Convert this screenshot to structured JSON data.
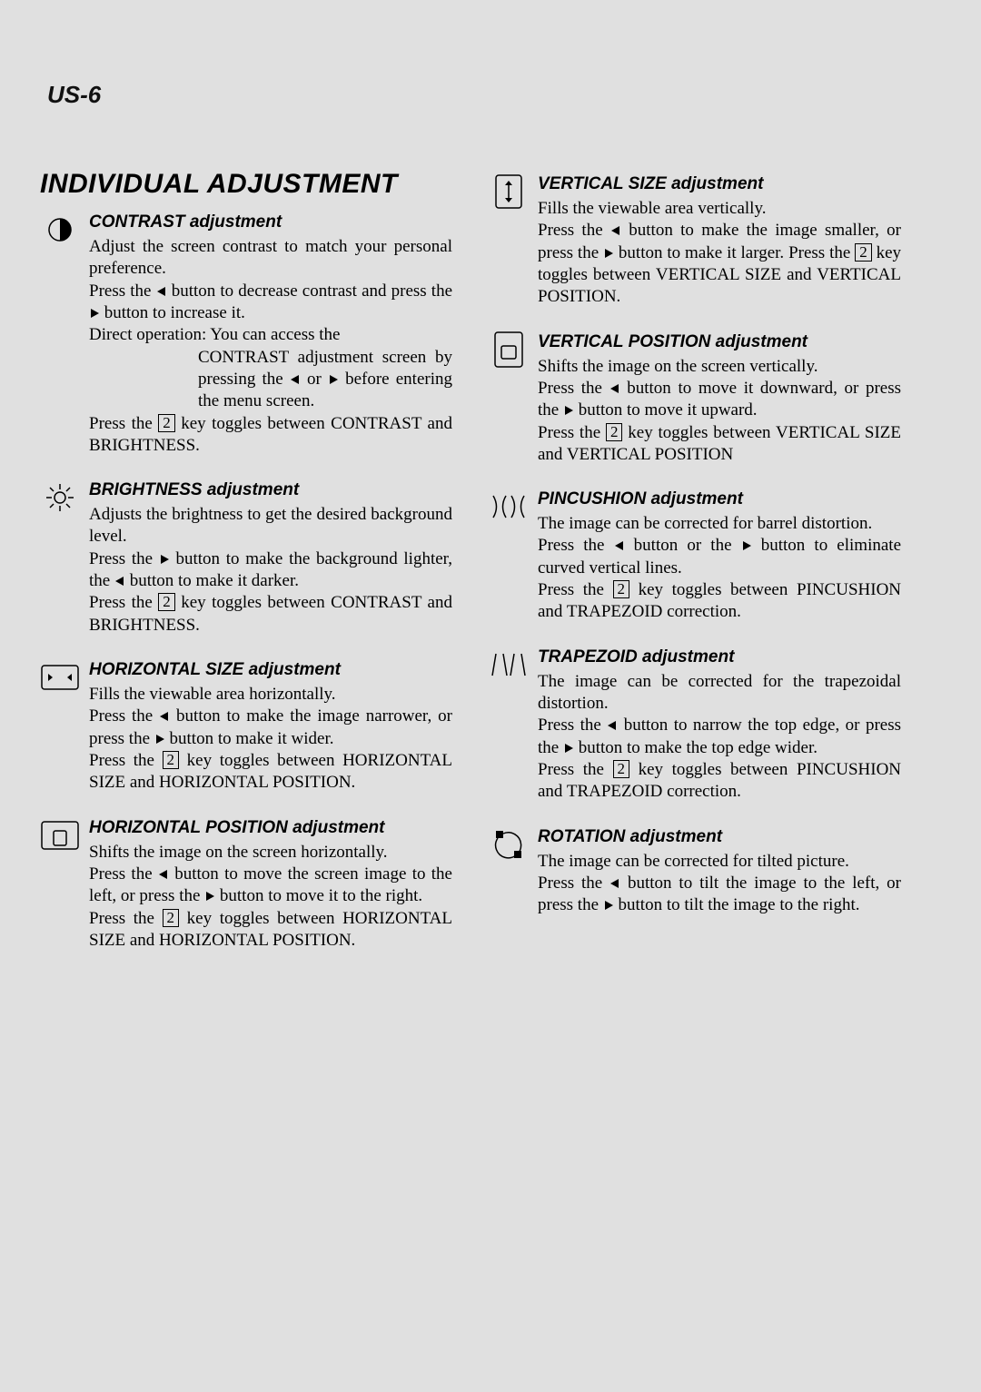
{
  "page_label": "US-6",
  "main_title": "INDIVIDUAL ADJUSTMENT",
  "key2_label": "2",
  "colors": {
    "bg": "#e0e0e0",
    "text": "#000000"
  },
  "left": [
    {
      "icon": "contrast-icon",
      "title": "CONTRAST adjustment",
      "paras": [
        "Adjust the screen contrast to match your personal preference.",
        "Press the ◄ button to decrease contrast and press the ► button to increase it.",
        "Direct operation: You can access the"
      ],
      "indent": "CONTRAST adjustment screen by pressing the ◄ or ► before entering the menu screen.",
      "tail": "Press the [2] key toggles between CONTRAST and BRIGHTNESS."
    },
    {
      "icon": "brightness-icon",
      "title": "BRIGHTNESS adjustment",
      "paras": [
        "Adjusts the brightness to get the desired background level.",
        "Press the ► button to make the background lighter, the ◄ button to make it darker.",
        "Press the [2] key toggles between CONTRAST and BRIGHTNESS."
      ]
    },
    {
      "icon": "hsize-icon",
      "title": "HORIZONTAL SIZE adjustment",
      "paras": [
        "Fills the viewable area horizontally.",
        "Press the ◄ button to make the image narrower, or press the ► button to make it wider.",
        "Press the [2] key toggles between HORIZONTAL SIZE and HORIZONTAL POSITION."
      ]
    },
    {
      "icon": "hpos-icon",
      "title": "HORIZONTAL POSITION adjustment",
      "paras": [
        "Shifts the image on the screen horizontally.",
        "Press the ◄ button to move the screen image to the left, or press the ► button to move it to the right.",
        "Press the [2] key toggles between HORIZONTAL SIZE and HORIZONTAL POSITION."
      ]
    }
  ],
  "right": [
    {
      "icon": "vsize-icon",
      "title": "VERTICAL SIZE adjustment",
      "paras": [
        "Fills the viewable area vertically.",
        "Press the ◄ button to make the image smaller, or press the ► button to make it larger. Press the [2] key toggles between VERTICAL SIZE and VERTICAL POSITION."
      ]
    },
    {
      "icon": "vpos-icon",
      "title": "VERTICAL POSITION adjustment",
      "paras": [
        "Shifts the image on the screen vertically.",
        "Press the ◄ button to move it downward, or press the ► button to move it upward.",
        "Press the [2] key toggles between VERTICAL SIZE and VERTICAL POSITION"
      ]
    },
    {
      "icon": "pincushion-icon",
      "title": "PINCUSHION adjustment",
      "paras": [
        "The image can be corrected for barrel distortion.",
        "Press the ◄ button or the ► button to eliminate curved vertical lines.",
        "Press the [2] key toggles between PINCUSHION and TRAPEZOID correction."
      ]
    },
    {
      "icon": "trapezoid-icon",
      "title": "TRAPEZOID adjustment",
      "paras": [
        "The image can be corrected for the trapezoidal distortion.",
        "Press the ◄ button to narrow the top edge, or press the ► button to make the top edge wider.",
        "Press the [2] key toggles between PINCUSHION and TRAPEZOID correction."
      ]
    },
    {
      "icon": "rotation-icon",
      "title": "ROTATION adjustment",
      "paras": [
        "The image can be corrected for tilted picture.",
        "Press the ◄ button to tilt the image to the left, or press the ► button to tilt the image to the right."
      ]
    }
  ]
}
